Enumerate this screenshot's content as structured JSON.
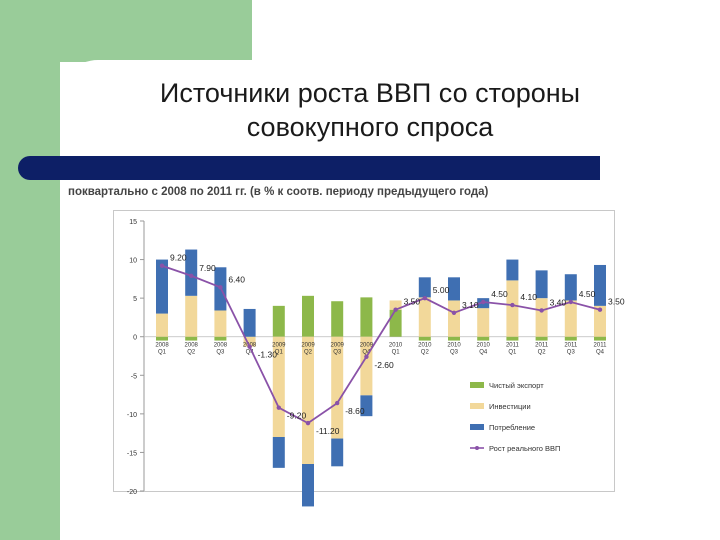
{
  "slide": {
    "title_line1": "Источники роста ВВП со стороны",
    "title_line2": "совокупного спроса",
    "subtitle": "поквартально с 2008 по 2011 гг. (в % к соотв. периоду предыдущего года)"
  },
  "colors": {
    "net_export": "#8db84a",
    "investment": "#f2d89a",
    "consumption": "#3f6fb2",
    "gdp": "#8a52a8",
    "side_band": "#99cc99",
    "header_rule": "#0d1f66"
  },
  "chart_data": {
    "type": "bar",
    "title": "",
    "xlabel": "",
    "ylabel": "",
    "ylim": [
      -20,
      15
    ],
    "yticks": [
      15,
      10,
      5,
      0,
      -5,
      -10,
      -15,
      -20
    ],
    "ytick_labels": [
      "15",
      "10",
      "5",
      "0",
      "-5",
      "-10",
      "-15",
      "-20"
    ],
    "grid": false,
    "legend_position": "bottom-right",
    "categories": [
      "2008 Q1",
      "2008 Q2",
      "2008 Q3",
      "2008 Q4",
      "2009 Q1",
      "2009 Q2",
      "2009 Q3",
      "2009 Q4",
      "2010 Q1",
      "2010 Q2",
      "2010 Q3",
      "2010 Q4",
      "2011 Q1",
      "2011 Q2",
      "2011 Q3",
      "2011 Q4"
    ],
    "category_labels": [
      [
        "2008",
        "Q1"
      ],
      [
        "2008",
        "Q2"
      ],
      [
        "2008",
        "Q3"
      ],
      [
        "2008",
        "Q4"
      ],
      [
        "2009",
        "Q1"
      ],
      [
        "2009",
        "Q2"
      ],
      [
        "2009",
        "Q3"
      ],
      [
        "2009",
        "Q4"
      ],
      [
        "2010",
        "Q1"
      ],
      [
        "2010",
        "Q2"
      ],
      [
        "2010",
        "Q3"
      ],
      [
        "2010",
        "Q4"
      ],
      [
        "2011",
        "Q1"
      ],
      [
        "2011",
        "Q2"
      ],
      [
        "2011",
        "Q3"
      ],
      [
        "2011",
        "Q4"
      ]
    ],
    "series": [
      {
        "name": "Чистый экспорт",
        "kind": "bar",
        "color": "#8db84a",
        "values": [
          -0.5,
          -0.5,
          -0.5,
          0,
          4.0,
          5.3,
          4.6,
          5.1,
          3.5,
          -0.5,
          -0.5,
          -0.5,
          -0.5,
          -0.5,
          -0.5,
          -0.5
        ]
      },
      {
        "name": "Инвестиции",
        "kind": "bar",
        "color": "#f2d89a",
        "values": [
          3.0,
          5.3,
          3.4,
          -1.3,
          -13.0,
          -16.5,
          -13.2,
          -7.6,
          1.2,
          5.1,
          4.7,
          3.7,
          7.3,
          5.0,
          4.7,
          4.0
        ]
      },
      {
        "name": "Потребление",
        "kind": "bar",
        "color": "#3f6fb2",
        "values": [
          7.0,
          6.0,
          5.6,
          3.6,
          -4.0,
          -5.5,
          -3.6,
          -2.7,
          0,
          2.6,
          3.0,
          1.3,
          2.7,
          3.6,
          3.4,
          5.3
        ]
      },
      {
        "name": "Рост реального ВВП",
        "kind": "line",
        "color": "#8a52a8",
        "values": [
          9.2,
          7.9,
          6.4,
          -1.3,
          -9.2,
          -11.2,
          -8.6,
          -2.6,
          3.5,
          5.0,
          3.1,
          4.5,
          4.1,
          3.4,
          4.5,
          3.5
        ]
      }
    ],
    "data_labels": [
      {
        "index": 0,
        "text": "9.20",
        "value": 9.2
      },
      {
        "index": 1,
        "text": "7.90",
        "value": 7.9
      },
      {
        "index": 2,
        "text": "6.40",
        "value": 6.4
      },
      {
        "index": 3,
        "text": "-1.30",
        "value": -1.3
      },
      {
        "index": 4,
        "text": "-9.20",
        "value": -9.2
      },
      {
        "index": 5,
        "text": "-11.20",
        "value": -11.2
      },
      {
        "index": 6,
        "text": "-8.60",
        "value": -8.6
      },
      {
        "index": 7,
        "text": "-2.60",
        "value": -2.6
      },
      {
        "index": 8,
        "text": "3.50",
        "value": 3.5
      },
      {
        "index": 9,
        "text": "5.00",
        "value": 5.0
      },
      {
        "index": 10,
        "text": "3.10",
        "value": 3.1
      },
      {
        "index": 11,
        "text": "4.50",
        "value": 4.5
      },
      {
        "index": 12,
        "text": "4.10",
        "value": 4.1
      },
      {
        "index": 13,
        "text": "3.40",
        "value": 3.4
      },
      {
        "index": 14,
        "text": "4.50",
        "value": 4.5
      },
      {
        "index": 15,
        "text": "3.50",
        "value": 3.5
      }
    ],
    "legend": [
      "Чистый экспорт",
      "Инвестиции",
      "Потребление",
      "Рост реального ВВП"
    ]
  }
}
